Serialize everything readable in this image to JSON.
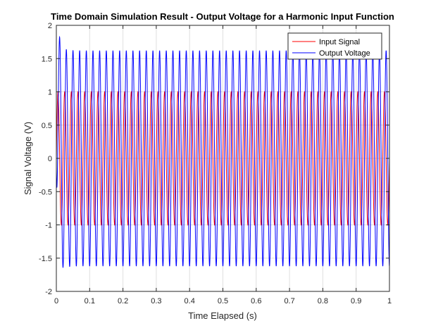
{
  "chart_data": {
    "type": "line",
    "title": "Time Domain Simulation Result - Output Voltage for a Harmonic Input Function",
    "xlabel": "Time Elapsed (s)",
    "ylabel": "Signal Voltage (V)",
    "xlim": [
      0,
      1
    ],
    "ylim": [
      -2,
      2
    ],
    "xticks": [
      0,
      0.1,
      0.2,
      0.3,
      0.4,
      0.5,
      0.6,
      0.7,
      0.8,
      0.9,
      1
    ],
    "xtick_labels": [
      "0",
      "0.1",
      "0.2",
      "0.3",
      "0.4",
      "0.5",
      "0.6",
      "0.7",
      "0.8",
      "0.9",
      "1"
    ],
    "yticks": [
      -2,
      -1.5,
      -1,
      -0.5,
      0,
      0.5,
      1,
      1.5,
      2
    ],
    "ytick_labels": [
      "-2",
      "-1.5",
      "-1",
      "-0.5",
      "0",
      "0.5",
      "1",
      "1.5",
      "2"
    ],
    "grid": true,
    "legend_position": "top-right",
    "series": [
      {
        "name": "Input Signal",
        "color": "#ff0000",
        "function": "sine",
        "amplitude": 1,
        "frequency_hz": 50,
        "x_range": [
          0,
          1
        ]
      },
      {
        "name": "Output Voltage",
        "color": "#0000ff",
        "function": "damped transient + steady-state sine",
        "steady_state_amplitude": 1.62,
        "peak_value": 1.75,
        "peak_time_s": 0.01,
        "frequency_hz": 50,
        "x_range": [
          0,
          1
        ]
      }
    ]
  }
}
